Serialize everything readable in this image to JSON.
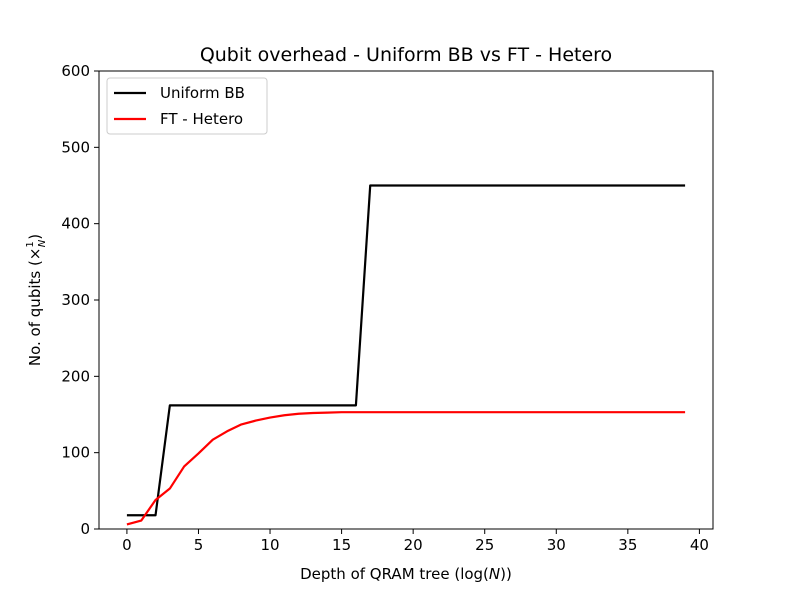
{
  "chart_data": {
    "type": "line",
    "title": "Qubit overhead - Uniform BB vs FT - Hetero",
    "xlabel": "Depth of QRAM tree (log(N))",
    "ylabel": "No. of qubits (×1/N)",
    "xlim": [
      -1.95,
      40.95
    ],
    "ylim": [
      0,
      600
    ],
    "xticks": [
      0,
      5,
      10,
      15,
      20,
      25,
      30,
      35,
      40
    ],
    "yticks": [
      0,
      100,
      200,
      300,
      400,
      500,
      600
    ],
    "grid": false,
    "legend_position": "upper-left",
    "series": [
      {
        "name": "Uniform BB",
        "color": "#000000",
        "x": [
          0,
          1,
          2,
          3,
          4,
          5,
          6,
          7,
          8,
          9,
          10,
          11,
          12,
          13,
          14,
          15,
          16,
          17,
          18,
          19,
          20,
          21,
          22,
          23,
          24,
          25,
          26,
          27,
          28,
          29,
          30,
          31,
          32,
          33,
          34,
          35,
          36,
          37,
          38,
          39
        ],
        "y": [
          18,
          18,
          18,
          162,
          162,
          162,
          162,
          162,
          162,
          162,
          162,
          162,
          162,
          162,
          162,
          162,
          162,
          450,
          450,
          450,
          450,
          450,
          450,
          450,
          450,
          450,
          450,
          450,
          450,
          450,
          450,
          450,
          450,
          450,
          450,
          450,
          450,
          450,
          450,
          450
        ]
      },
      {
        "name": "FT - Hetero",
        "color": "#ff0000",
        "x": [
          0,
          1,
          2,
          3,
          4,
          5,
          6,
          7,
          8,
          9,
          10,
          11,
          12,
          13,
          14,
          15,
          16,
          17,
          18,
          19,
          20,
          21,
          22,
          23,
          24,
          25,
          26,
          27,
          28,
          29,
          30,
          31,
          32,
          33,
          34,
          35,
          36,
          37,
          38,
          39
        ],
        "y": [
          6,
          11,
          38,
          53,
          82,
          99,
          117,
          128,
          137,
          142,
          146,
          149,
          151,
          152,
          152.5,
          153,
          153,
          153,
          153,
          153,
          153,
          153,
          153,
          153,
          153,
          153,
          153,
          153,
          153,
          153,
          153,
          153,
          153,
          153,
          153,
          153,
          153,
          153,
          153,
          153
        ]
      }
    ]
  }
}
